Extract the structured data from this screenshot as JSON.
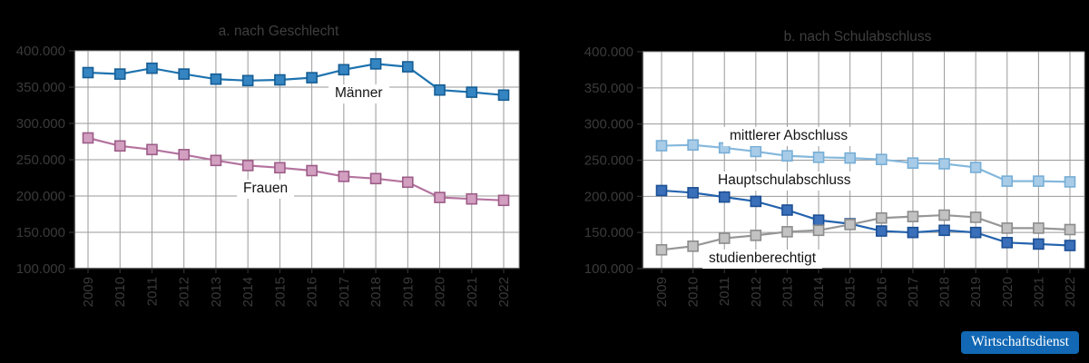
{
  "colors": {
    "figure_bg": "#000000",
    "plot_bg": "#ffffff",
    "grid": "#9a9a9a",
    "spine": "#2e2e2e",
    "tick_text": "#3a3a3a",
    "title_text": "#3f3f3f",
    "logo_bg": "#1268b4",
    "logo_text": "#ffffff"
  },
  "logo": {
    "text": "Wirtschaftsdienst"
  },
  "chart_data": [
    {
      "type": "line",
      "title": "a. nach Geschlecht",
      "x": [
        "2009",
        "2010",
        "2011",
        "2012",
        "2013",
        "2014",
        "2015",
        "2016",
        "2017",
        "2018",
        "2019",
        "2020",
        "2021",
        "2022"
      ],
      "ylim": [
        100000,
        400000
      ],
      "ytick_values": [
        400000,
        350000,
        300000,
        250000,
        200000,
        150000,
        100000
      ],
      "ytick_labels": [
        "400.000",
        "350.000",
        "300.000",
        "250.000",
        "200.000",
        "150.000",
        "100.000"
      ],
      "grid": true,
      "legend_position": "inline-labels",
      "series": [
        {
          "name": "Männer",
          "key": "maenner",
          "color": "#1e73b0",
          "marker_fill": "#3585c2",
          "marker_edge": "#155d94",
          "values": [
            370000,
            368000,
            376000,
            368000,
            361000,
            359000,
            360000,
            363000,
            374000,
            382000,
            378000,
            346000,
            343000,
            339000
          ]
        },
        {
          "name": "Frauen",
          "key": "frauen",
          "color": "#b4739f",
          "marker_fill": "#d29fc1",
          "marker_edge": "#9c5c87",
          "values": [
            280000,
            269000,
            264000,
            257000,
            249000,
            242000,
            239000,
            235000,
            227000,
            224000,
            219000,
            198000,
            196000,
            194000
          ]
        }
      ]
    },
    {
      "type": "line",
      "title": "b. nach Schulabschluss",
      "x": [
        "2009",
        "2010",
        "2011",
        "2012",
        "2013",
        "2014",
        "2015",
        "2016",
        "2017",
        "2018",
        "2019",
        "2020",
        "2021",
        "2022"
      ],
      "ylim": [
        100000,
        400000
      ],
      "ytick_values": [
        400000,
        350000,
        300000,
        250000,
        200000,
        150000,
        100000
      ],
      "ytick_labels": [
        "400.000",
        "350.000",
        "300.000",
        "250.000",
        "200.000",
        "150.000",
        "100.000"
      ],
      "grid": true,
      "legend_position": "inline-labels",
      "series": [
        {
          "name": "mittlerer Abschluss",
          "key": "mittlerer-abschluss",
          "color": "#85b8dc",
          "marker_fill": "#a8cce8",
          "marker_edge": "#77aed6",
          "values": [
            270000,
            271000,
            267000,
            262000,
            256000,
            254000,
            253000,
            251000,
            246000,
            245000,
            240000,
            221000,
            221000,
            220000
          ]
        },
        {
          "name": "Hauptschulabschluss",
          "key": "hauptschulabschluss",
          "color": "#2463ae",
          "marker_fill": "#3a6fba",
          "marker_edge": "#1d4f93",
          "values": [
            208000,
            205000,
            199000,
            193000,
            181000,
            167000,
            162000,
            152000,
            150000,
            153000,
            150000,
            136000,
            134000,
            132000
          ]
        },
        {
          "name": "studienberechtigt",
          "key": "studienberechtigt",
          "color": "#969696",
          "marker_fill": "#c2c2c2",
          "marker_edge": "#8c8c8c",
          "values": [
            126000,
            131000,
            142000,
            146000,
            151000,
            153000,
            161000,
            170000,
            172000,
            174000,
            171000,
            156000,
            156000,
            154000
          ]
        }
      ]
    }
  ]
}
